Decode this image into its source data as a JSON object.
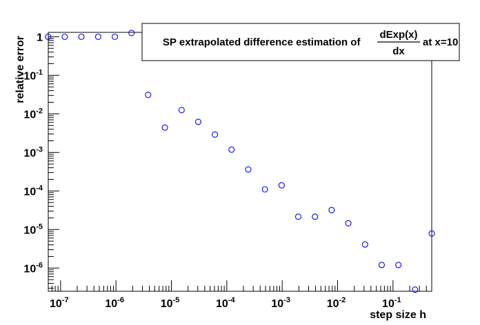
{
  "chart_data": {
    "type": "scatter",
    "title": {
      "prefix": "SP extrapolated difference estimation of",
      "numerator": "dExp(x)",
      "denominator": "dx",
      "suffix": "at x=10"
    },
    "xlabel": "step size h",
    "ylabel": "relative error",
    "x_scale": "log",
    "y_scale": "log",
    "xlim": [
      6e-08,
      0.5
    ],
    "ylim": [
      2.5e-07,
      1.3
    ],
    "grid": false,
    "marker": "open-circle",
    "marker_color": "#0000ff",
    "x_ticks": [
      {
        "base": "10",
        "exp": "-7",
        "value": 1e-07
      },
      {
        "base": "10",
        "exp": "-6",
        "value": 1e-06
      },
      {
        "base": "10",
        "exp": "-5",
        "value": 1e-05
      },
      {
        "base": "10",
        "exp": "-4",
        "value": 0.0001
      },
      {
        "base": "10",
        "exp": "-3",
        "value": 0.001
      },
      {
        "base": "10",
        "exp": "-2",
        "value": 0.01
      },
      {
        "base": "10",
        "exp": "-1",
        "value": 0.1
      }
    ],
    "y_ticks": [
      {
        "base": "1",
        "exp": "",
        "value": 1
      },
      {
        "base": "10",
        "exp": "-1",
        "value": 0.1
      },
      {
        "base": "10",
        "exp": "-2",
        "value": 0.01
      },
      {
        "base": "10",
        "exp": "-3",
        "value": 0.001
      },
      {
        "base": "10",
        "exp": "-4",
        "value": 0.0001
      },
      {
        "base": "10",
        "exp": "-5",
        "value": 1e-05
      },
      {
        "base": "10",
        "exp": "-6",
        "value": 1e-06
      }
    ],
    "points": [
      {
        "x": 5.96e-08,
        "y": 1.0
      },
      {
        "x": 1.19e-07,
        "y": 1.0
      },
      {
        "x": 2.38e-07,
        "y": 1.0
      },
      {
        "x": 4.77e-07,
        "y": 1.0
      },
      {
        "x": 9.54e-07,
        "y": 1.0
      },
      {
        "x": 1.91e-06,
        "y": 1.25
      },
      {
        "x": 3.81e-06,
        "y": 0.031
      },
      {
        "x": 7.63e-06,
        "y": 0.0044
      },
      {
        "x": 1.53e-05,
        "y": 0.0125
      },
      {
        "x": 3.05e-05,
        "y": 0.0062
      },
      {
        "x": 6.1e-05,
        "y": 0.0029
      },
      {
        "x": 0.000122,
        "y": 0.00118
      },
      {
        "x": 0.000244,
        "y": 0.00036
      },
      {
        "x": 0.000488,
        "y": 0.00011
      },
      {
        "x": 0.000977,
        "y": 0.00014
      },
      {
        "x": 0.00195,
        "y": 2.15e-05
      },
      {
        "x": 0.00391,
        "y": 2.15e-05
      },
      {
        "x": 0.00781,
        "y": 3.2e-05
      },
      {
        "x": 0.0156,
        "y": 1.45e-05
      },
      {
        "x": 0.0313,
        "y": 4.1e-06
      },
      {
        "x": 0.0625,
        "y": 1.2e-06
      },
      {
        "x": 0.125,
        "y": 1.2e-06
      },
      {
        "x": 0.25,
        "y": 2.75e-07
      },
      {
        "x": 0.5,
        "y": 7.9e-06
      }
    ]
  }
}
